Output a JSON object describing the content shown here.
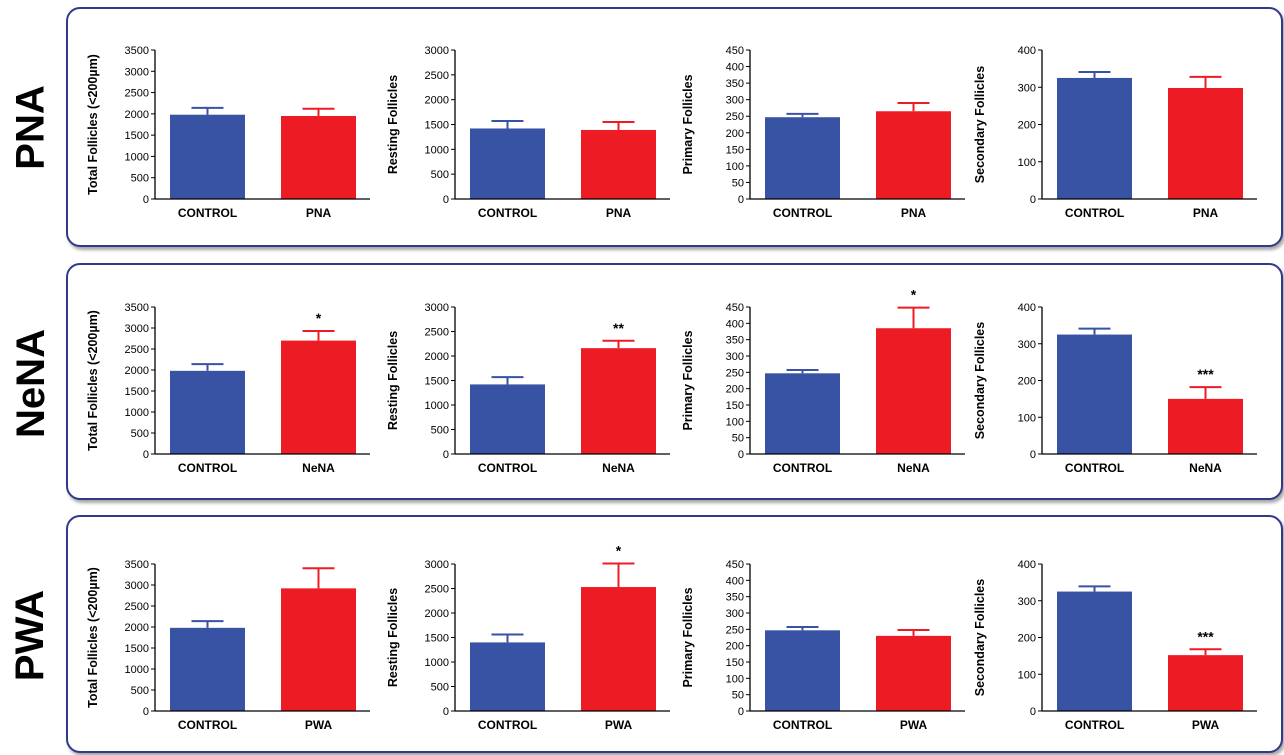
{
  "colors": {
    "control": "#3852a4",
    "treatment": "#ed1c24",
    "panel_border": "#2f3b8a"
  },
  "rows": [
    {
      "label": "PNA"
    },
    {
      "label": "NeNA"
    },
    {
      "label": "PWA"
    }
  ],
  "chart_data": [
    {
      "type": "bar",
      "ylabel": "Total Follicles (<200µm)",
      "categories": [
        "CONTROL",
        "PNA"
      ],
      "values": [
        1980,
        1950
      ],
      "errors": [
        160,
        170
      ],
      "significance": [
        "",
        ""
      ],
      "ylim": [
        0,
        3500
      ],
      "yticks": [
        0,
        500,
        1000,
        1500,
        2000,
        2500,
        3000,
        3500
      ]
    },
    {
      "type": "bar",
      "ylabel": "Resting Follicles",
      "categories": [
        "CONTROL",
        "PNA"
      ],
      "values": [
        1420,
        1390
      ],
      "errors": [
        150,
        160
      ],
      "significance": [
        "",
        ""
      ],
      "ylim": [
        0,
        3000
      ],
      "yticks": [
        0,
        500,
        1000,
        1500,
        2000,
        2500,
        3000
      ]
    },
    {
      "type": "bar",
      "ylabel": "Primary Follicles",
      "categories": [
        "CONTROL",
        "PNA"
      ],
      "values": [
        247,
        265
      ],
      "errors": [
        10,
        25
      ],
      "significance": [
        "",
        ""
      ],
      "ylim": [
        0,
        450
      ],
      "yticks": [
        0,
        50,
        100,
        150,
        200,
        250,
        300,
        350,
        400,
        450
      ]
    },
    {
      "type": "bar",
      "ylabel": "Secondary Follicles",
      "categories": [
        "CONTROL",
        "PNA"
      ],
      "values": [
        325,
        298
      ],
      "errors": [
        16,
        30
      ],
      "significance": [
        "",
        ""
      ],
      "ylim": [
        0,
        400
      ],
      "yticks": [
        0,
        100,
        200,
        300,
        400
      ]
    },
    {
      "type": "bar",
      "ylabel": "Total Follicles (<200µm)",
      "categories": [
        "CONTROL",
        "NeNA"
      ],
      "values": [
        1980,
        2700
      ],
      "errors": [
        160,
        230
      ],
      "significance": [
        "",
        "*"
      ],
      "ylim": [
        0,
        3500
      ],
      "yticks": [
        0,
        500,
        1000,
        1500,
        2000,
        2500,
        3000,
        3500
      ]
    },
    {
      "type": "bar",
      "ylabel": "Resting Follicles",
      "categories": [
        "CONTROL",
        "NeNA"
      ],
      "values": [
        1420,
        2160
      ],
      "errors": [
        150,
        150
      ],
      "significance": [
        "",
        "**"
      ],
      "ylim": [
        0,
        3000
      ],
      "yticks": [
        0,
        500,
        1000,
        1500,
        2000,
        2500,
        3000
      ]
    },
    {
      "type": "bar",
      "ylabel": "Primary Follicles",
      "categories": [
        "CONTROL",
        "NeNA"
      ],
      "values": [
        247,
        385
      ],
      "errors": [
        10,
        63
      ],
      "significance": [
        "",
        "*"
      ],
      "ylim": [
        0,
        450
      ],
      "yticks": [
        0,
        50,
        100,
        150,
        200,
        250,
        300,
        350,
        400,
        450
      ]
    },
    {
      "type": "bar",
      "ylabel": "Secondary Follicles",
      "categories": [
        "CONTROL",
        "NeNA"
      ],
      "values": [
        325,
        150
      ],
      "errors": [
        16,
        32
      ],
      "significance": [
        "",
        "***"
      ],
      "ylim": [
        0,
        400
      ],
      "yticks": [
        0,
        100,
        200,
        300,
        400
      ]
    },
    {
      "type": "bar",
      "ylabel": "Total Follicles (<200µm)",
      "categories": [
        "CONTROL",
        "PWA"
      ],
      "values": [
        1980,
        2920
      ],
      "errors": [
        160,
        480
      ],
      "significance": [
        "",
        ""
      ],
      "ylim": [
        0,
        3500
      ],
      "yticks": [
        0,
        500,
        1000,
        1500,
        2000,
        2500,
        3000,
        3500
      ]
    },
    {
      "type": "bar",
      "ylabel": "Resting Follicles",
      "categories": [
        "CONTROL",
        "PWA"
      ],
      "values": [
        1400,
        2530
      ],
      "errors": [
        160,
        480
      ],
      "significance": [
        "",
        "*"
      ],
      "ylim": [
        0,
        3000
      ],
      "yticks": [
        0,
        500,
        1000,
        1500,
        2000,
        2500,
        3000
      ]
    },
    {
      "type": "bar",
      "ylabel": "Primary Follicles",
      "categories": [
        "CONTROL",
        "PWA"
      ],
      "values": [
        247,
        230
      ],
      "errors": [
        10,
        18
      ],
      "significance": [
        "",
        ""
      ],
      "ylim": [
        0,
        450
      ],
      "yticks": [
        0,
        50,
        100,
        150,
        200,
        250,
        300,
        350,
        400,
        450
      ]
    },
    {
      "type": "bar",
      "ylabel": "Secondary Follicles",
      "categories": [
        "CONTROL",
        "PWA"
      ],
      "values": [
        325,
        152
      ],
      "errors": [
        14,
        16
      ],
      "significance": [
        "",
        "***"
      ],
      "ylim": [
        0,
        400
      ],
      "yticks": [
        0,
        100,
        200,
        300,
        400
      ]
    }
  ]
}
